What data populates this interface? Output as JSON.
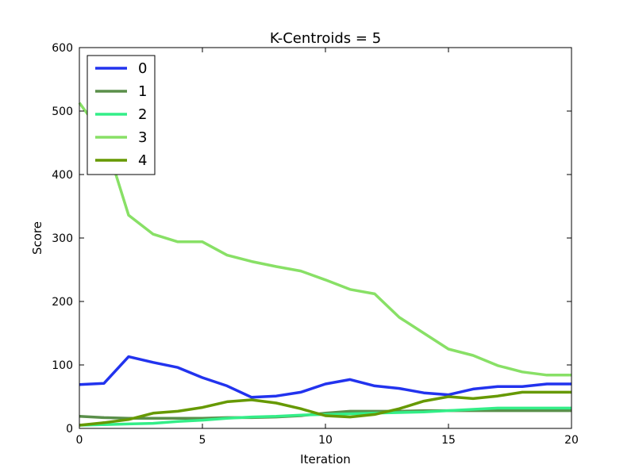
{
  "chart_data": {
    "type": "line",
    "title": "K-Centroids = 5",
    "xlabel": "Iteration",
    "ylabel": "Score",
    "xlim": [
      0,
      20
    ],
    "ylim": [
      0,
      600
    ],
    "xticks": [
      0,
      5,
      10,
      15,
      20
    ],
    "yticks": [
      0,
      100,
      200,
      300,
      400,
      500,
      600
    ],
    "grid": false,
    "legend_position": "top-left",
    "x": [
      0,
      1,
      2,
      3,
      4,
      5,
      6,
      7,
      8,
      9,
      10,
      11,
      12,
      13,
      14,
      15,
      16,
      17,
      18,
      19,
      20
    ],
    "series": [
      {
        "name": "0",
        "color": "#2233ee",
        "values": [
          69,
          71,
          113,
          104,
          96,
          80,
          67,
          49,
          51,
          57,
          70,
          77,
          67,
          63,
          56,
          53,
          62,
          66,
          66,
          70,
          70
        ]
      },
      {
        "name": "1",
        "color": "#5a8f4a",
        "values": [
          19,
          17,
          16,
          16,
          16,
          16,
          17,
          17,
          18,
          20,
          24,
          27,
          27,
          27,
          28,
          28,
          28,
          28,
          28,
          28,
          28
        ]
      },
      {
        "name": "2",
        "color": "#33ee88",
        "values": [
          5,
          6,
          7,
          8,
          11,
          13,
          16,
          18,
          19,
          21,
          22,
          23,
          24,
          25,
          26,
          28,
          30,
          32,
          32,
          32,
          32
        ]
      },
      {
        "name": "3",
        "color": "#88e066",
        "values": [
          513,
          460,
          336,
          306,
          294,
          294,
          273,
          263,
          255,
          248,
          234,
          219,
          212,
          175,
          150,
          125,
          115,
          99,
          89,
          84,
          84
        ]
      },
      {
        "name": "4",
        "color": "#669900",
        "values": [
          5,
          9,
          14,
          24,
          27,
          33,
          42,
          45,
          40,
          31,
          20,
          18,
          22,
          31,
          43,
          50,
          47,
          51,
          57,
          57,
          57
        ]
      }
    ]
  }
}
